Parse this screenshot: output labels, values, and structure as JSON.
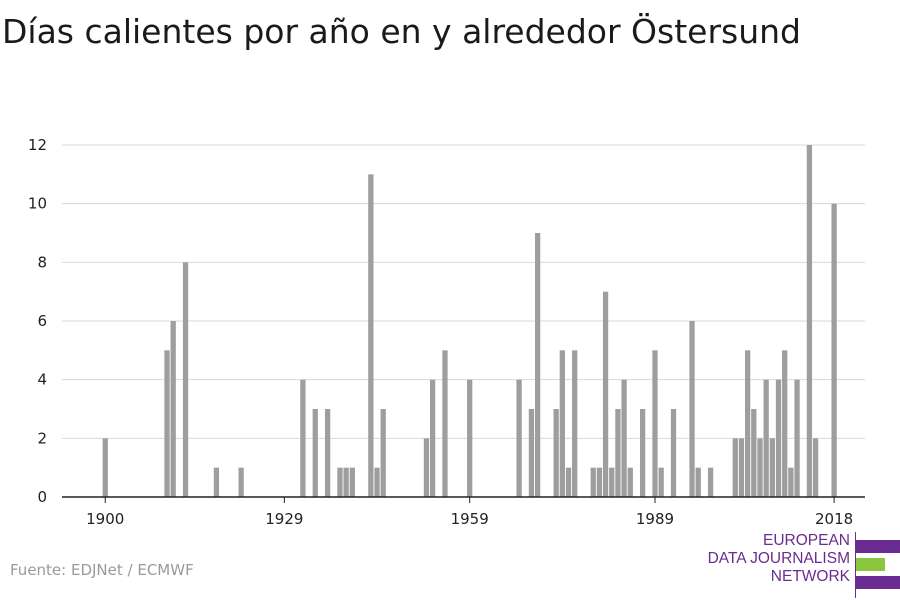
{
  "title": "Días calientes por año en y alrededor Östersund",
  "source": "Fuente: EDJNet / ECMWF",
  "logo": {
    "lines": [
      "EUROPEAN",
      "DATA JOURNALISM",
      "NETWORK"
    ],
    "colors": {
      "purple": "#6a2c91",
      "green": "#8cc63f"
    }
  },
  "colors": {
    "bar": "#9e9e9e",
    "grid": "#d9d9d9",
    "axis": "#222222"
  },
  "chart_data": {
    "type": "bar",
    "title": "Días calientes por año en y alrededor Östersund",
    "xlabel": "",
    "ylabel": "",
    "xlim": [
      1893,
      2023
    ],
    "ylim": [
      0,
      12
    ],
    "x_ticks": [
      1900,
      1929,
      1959,
      1989,
      2018
    ],
    "y_ticks": [
      0,
      2,
      4,
      6,
      8,
      10,
      12
    ],
    "grid": true,
    "x": [
      1900,
      1910,
      1911,
      1913,
      1918,
      1922,
      1932,
      1934,
      1936,
      1938,
      1939,
      1940,
      1943,
      1944,
      1945,
      1952,
      1953,
      1955,
      1959,
      1967,
      1969,
      1970,
      1973,
      1974,
      1975,
      1976,
      1979,
      1980,
      1981,
      1982,
      1983,
      1984,
      1985,
      1987,
      1989,
      1990,
      1992,
      1995,
      1996,
      1998,
      2002,
      2003,
      2004,
      2005,
      2006,
      2007,
      2008,
      2009,
      2010,
      2011,
      2012,
      2014,
      2015,
      2018
    ],
    "values": [
      2,
      5,
      6,
      8,
      1,
      1,
      4,
      3,
      3,
      1,
      1,
      1,
      11,
      1,
      3,
      2,
      4,
      5,
      4,
      4,
      3,
      9,
      3,
      5,
      1,
      5,
      1,
      1,
      7,
      1,
      3,
      4,
      1,
      3,
      5,
      1,
      3,
      6,
      1,
      1,
      2,
      2,
      5,
      3,
      2,
      4,
      2,
      4,
      5,
      1,
      4,
      12,
      2,
      10
    ]
  }
}
